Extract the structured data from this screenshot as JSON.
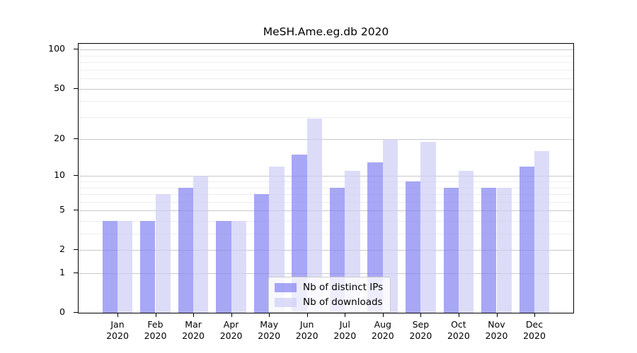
{
  "title": "MeSH.Ame.eg.db 2020",
  "chart_data": {
    "type": "bar",
    "title": "MeSH.Ame.eg.db 2020",
    "yscale": "log1p",
    "ylim": [
      0,
      111
    ],
    "yticks": [
      0,
      1,
      2,
      5,
      10,
      20,
      50,
      100
    ],
    "yticks_minor": [
      3,
      4,
      6,
      7,
      8,
      9,
      30,
      40,
      60,
      70,
      80,
      90
    ],
    "grid": "horizontal",
    "legend_position": "inside-bottom-center",
    "categories": [
      "Jan",
      "Feb",
      "Mar",
      "Apr",
      "May",
      "Jun",
      "Jul",
      "Aug",
      "Sep",
      "Oct",
      "Nov",
      "Dec"
    ],
    "category_year": "2020",
    "series": [
      {
        "key": "ips",
        "name": "Nb of distinct IPs",
        "color": "rgba(133,133,243,0.72)",
        "solid_color": "#a8a8f6",
        "values": [
          4,
          4,
          8,
          4,
          7,
          15,
          8,
          13,
          9,
          8,
          8,
          12
        ]
      },
      {
        "key": "downloads",
        "name": "Nb of downloads",
        "color": "rgba(206,206,247,0.72)",
        "solid_color": "#dcdcf9",
        "values": [
          4,
          7,
          10,
          4,
          12,
          29,
          11,
          20,
          19,
          11,
          8,
          16
        ]
      }
    ]
  },
  "colors": {
    "grid_major": "#c9c9c9",
    "grid_minor": "#ededed",
    "axis": "#000000",
    "legend_border": "#cccccc"
  }
}
